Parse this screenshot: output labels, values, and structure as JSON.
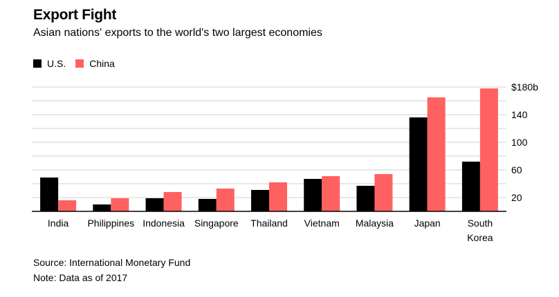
{
  "title": "Export Fight",
  "subtitle": "Asian nations' exports to the world's two largest economies",
  "colors": {
    "us": "#000000",
    "china": "#ff6161",
    "grid": "#d0d0d0",
    "axis": "#000000"
  },
  "source": "Source: International Monetary Fund",
  "note": "Note: Data as of 2017",
  "chart_data": {
    "type": "bar",
    "title": "Export Fight",
    "subtitle": "Asian nations' exports to the world's two largest economies",
    "categories": [
      [
        "India"
      ],
      [
        "Philippines"
      ],
      [
        "Indonesia"
      ],
      [
        "Singapore"
      ],
      [
        "Thailand"
      ],
      [
        "Vietnam"
      ],
      [
        "Malaysia"
      ],
      [
        "Japan"
      ],
      [
        "South",
        "Korea"
      ]
    ],
    "series": [
      {
        "name": "U.S.",
        "values": [
          49,
          10,
          19,
          18,
          31,
          47,
          37,
          136,
          72
        ]
      },
      {
        "name": "China",
        "values": [
          16,
          19,
          28,
          33,
          42,
          51,
          54,
          165,
          178
        ]
      }
    ],
    "ylim": [
      0,
      180
    ],
    "yticks": [
      20,
      60,
      100,
      140,
      180
    ],
    "ytick_labels": [
      "20",
      "60",
      "100",
      "140",
      "$180b"
    ],
    "xlabel": "",
    "ylabel": "",
    "legend": "top-left",
    "grid": true
  }
}
